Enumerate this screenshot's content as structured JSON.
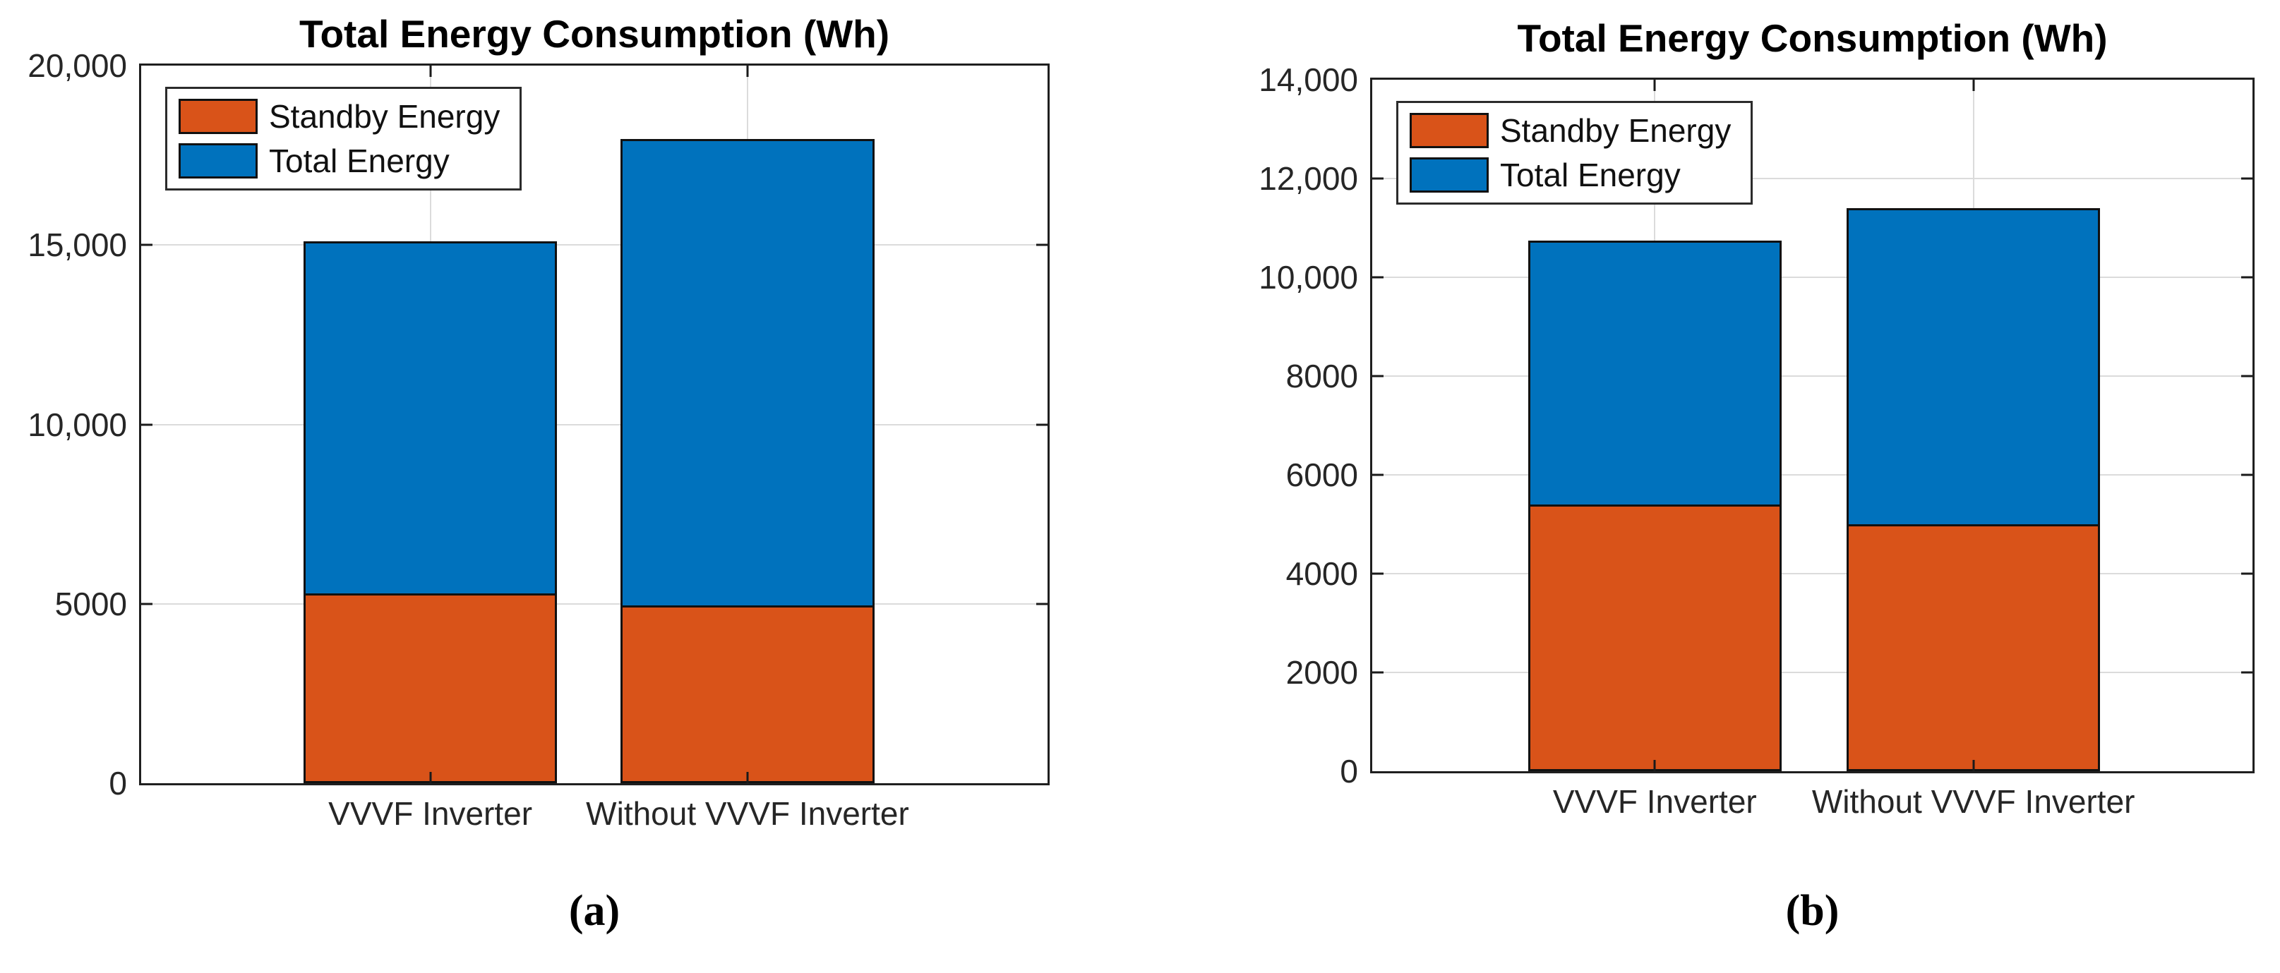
{
  "figure": {
    "background": "#ffffff",
    "captions": [
      "(a)",
      "(b)"
    ],
    "colors": {
      "standby": "#D95319",
      "total": "#0072BD",
      "axis": "#1f1f1f",
      "grid": "#dbdbdb",
      "tick_label": "#262626"
    }
  },
  "chart_data": [
    {
      "type": "bar",
      "stacked": true,
      "title": "Total Energy Consumption (Wh)",
      "categories": [
        "VVVF Inverter",
        "Without VVVF Inverter"
      ],
      "series": [
        {
          "name": "Standby Energy",
          "color": "#D95319",
          "segment": "bottom",
          "values": [
            5300,
            4950
          ]
        },
        {
          "name": "Total Energy",
          "color": "#0072BD",
          "segment": "bar-top",
          "values": [
            15100,
            17950
          ]
        }
      ],
      "xlabel": "",
      "ylabel": "",
      "ylim": [
        0,
        20000
      ],
      "yticks": [
        {
          "value": 0,
          "label": "0"
        },
        {
          "value": 5000,
          "label": "5000"
        },
        {
          "value": 10000,
          "label": "10,000"
        },
        {
          "value": 15000,
          "label": "15,000"
        },
        {
          "value": 20000,
          "label": "20,000"
        }
      ],
      "grid": "both",
      "legend_position": "top-left-inside",
      "caption": "(a)"
    },
    {
      "type": "bar",
      "stacked": true,
      "title": "Total Energy Consumption (Wh)",
      "categories": [
        "VVVF Inverter",
        "Without VVVF Inverter"
      ],
      "series": [
        {
          "name": "Standby Energy",
          "color": "#D95319",
          "segment": "bottom",
          "values": [
            5400,
            5000
          ]
        },
        {
          "name": "Total Energy",
          "color": "#0072BD",
          "segment": "bar-top",
          "values": [
            10750,
            11400
          ]
        }
      ],
      "xlabel": "",
      "ylabel": "",
      "ylim": [
        0,
        14000
      ],
      "yticks": [
        {
          "value": 0,
          "label": "0"
        },
        {
          "value": 2000,
          "label": "2000"
        },
        {
          "value": 4000,
          "label": "4000"
        },
        {
          "value": 6000,
          "label": "6000"
        },
        {
          "value": 8000,
          "label": "8000"
        },
        {
          "value": 10000,
          "label": "10,000"
        },
        {
          "value": 12000,
          "label": "12,000"
        },
        {
          "value": 14000,
          "label": "14,000"
        }
      ],
      "grid": "both",
      "legend_position": "top-left-inside",
      "caption": "(b)"
    }
  ]
}
